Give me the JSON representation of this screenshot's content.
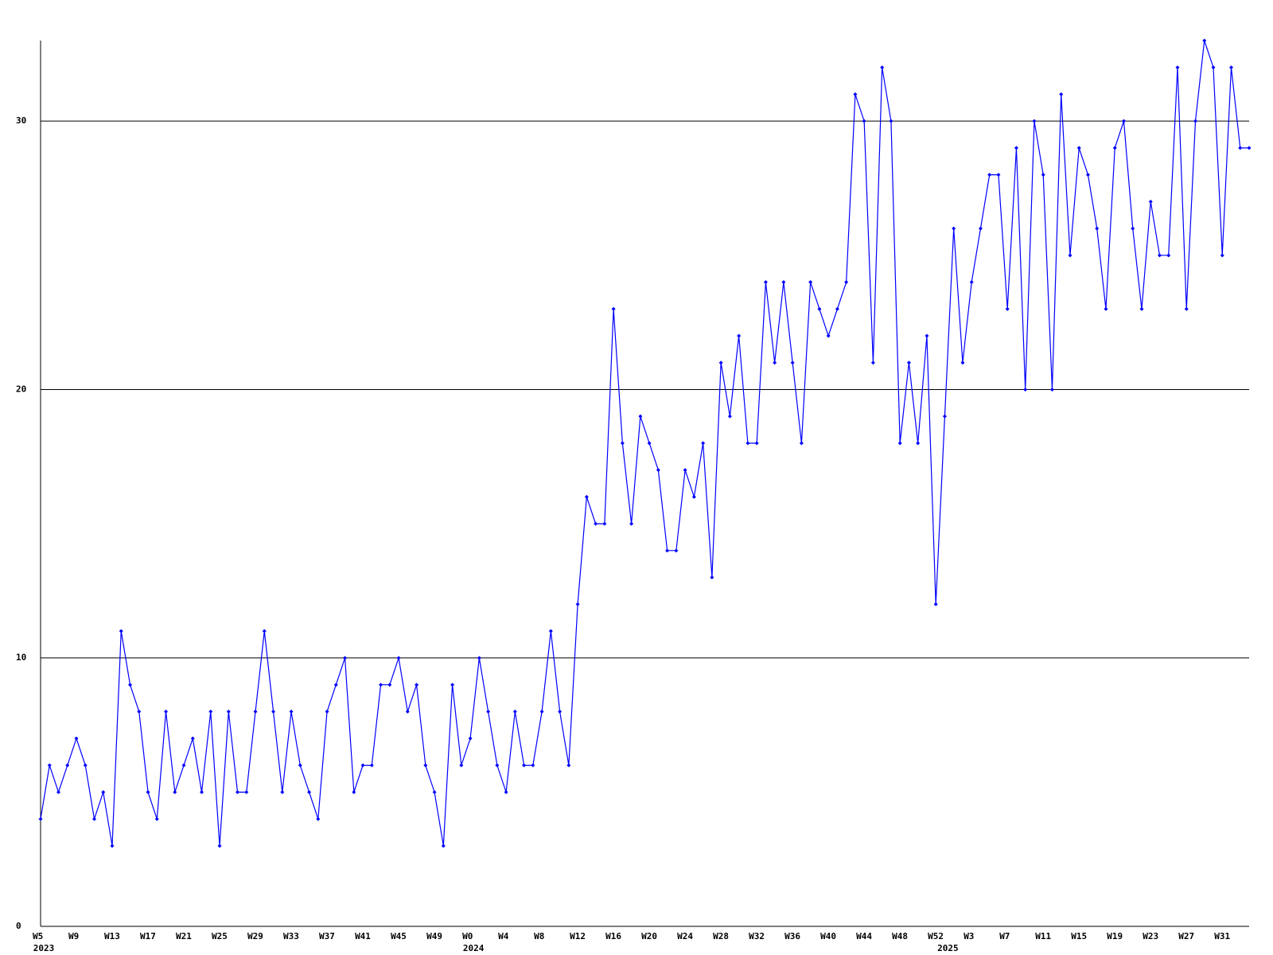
{
  "chart_data": {
    "type": "line",
    "color": "#0000ff",
    "grid": true,
    "ylim": [
      0,
      33
    ],
    "yticks": [
      0,
      10,
      20,
      30
    ],
    "categories": [
      "W5",
      null,
      null,
      null,
      "W9",
      null,
      null,
      null,
      "W13",
      null,
      null,
      null,
      "W17",
      null,
      null,
      null,
      "W21",
      null,
      null,
      null,
      "W25",
      null,
      null,
      null,
      "W29",
      null,
      null,
      null,
      "W33",
      null,
      null,
      null,
      "W37",
      null,
      null,
      null,
      "W41",
      null,
      null,
      null,
      "W45",
      null,
      null,
      null,
      "W49",
      null,
      null,
      null,
      "W0",
      null,
      null,
      null,
      "W4",
      null,
      null,
      null,
      "W8",
      null,
      null,
      null,
      "W12",
      null,
      null,
      null,
      "W16",
      null,
      null,
      null,
      "W20",
      null,
      null,
      null,
      "W24",
      null,
      null,
      null,
      "W28",
      null,
      null,
      null,
      "W32",
      null,
      null,
      null,
      "W36",
      null,
      null,
      null,
      "W40",
      null,
      null,
      null,
      "W44",
      null,
      null,
      null,
      "W48",
      null,
      null,
      null,
      "W52",
      null,
      null,
      null,
      "W3",
      null,
      null,
      null,
      "W7",
      null,
      null,
      null,
      "W11",
      null,
      null,
      null,
      "W15",
      null,
      null,
      null,
      "W19",
      null,
      null,
      null,
      "W23",
      null,
      null,
      null,
      "W27",
      null,
      null,
      null,
      "W31",
      null,
      null,
      null
    ],
    "category_years": [
      "2023",
      null,
      null,
      null,
      null,
      null,
      null,
      null,
      null,
      null,
      null,
      null,
      null,
      null,
      null,
      null,
      null,
      null,
      null,
      null,
      null,
      null,
      null,
      null,
      null,
      null,
      null,
      null,
      null,
      null,
      null,
      null,
      null,
      null,
      null,
      null,
      null,
      null,
      null,
      null,
      null,
      null,
      null,
      null,
      null,
      null,
      null,
      null,
      "2024",
      null,
      null,
      null,
      null,
      null,
      null,
      null,
      null,
      null,
      null,
      null,
      null,
      null,
      null,
      null,
      null,
      null,
      null,
      null,
      null,
      null,
      null,
      null,
      null,
      null,
      null,
      null,
      null,
      null,
      null,
      null,
      null,
      null,
      null,
      null,
      null,
      null,
      null,
      null,
      null,
      null,
      null,
      null,
      null,
      null,
      null,
      null,
      null,
      null,
      null,
      null,
      null,
      "2025",
      null,
      null,
      null,
      null,
      null,
      null,
      null,
      null,
      null,
      null,
      null,
      null,
      null,
      null,
      null,
      null,
      null,
      null,
      null,
      null,
      null,
      null,
      null,
      null,
      null,
      null,
      null,
      null,
      null,
      null,
      null,
      null,
      null,
      null
    ],
    "values": [
      4,
      6,
      5,
      6,
      7,
      6,
      4,
      5,
      3,
      11,
      9,
      8,
      5,
      4,
      8,
      5,
      6,
      7,
      5,
      8,
      3,
      8,
      5,
      5,
      8,
      11,
      8,
      5,
      8,
      6,
      5,
      4,
      8,
      9,
      10,
      5,
      6,
      6,
      9,
      9,
      10,
      8,
      9,
      6,
      5,
      3,
      9,
      6,
      7,
      10,
      8,
      6,
      5,
      8,
      6,
      6,
      8,
      11,
      8,
      6,
      12,
      16,
      15,
      15,
      23,
      18,
      15,
      19,
      18,
      17,
      14,
      14,
      17,
      16,
      18,
      13,
      21,
      19,
      22,
      18,
      18,
      24,
      21,
      24,
      21,
      18,
      24,
      23,
      22,
      23,
      24,
      31,
      30,
      21,
      32,
      30,
      18,
      21,
      18,
      22,
      12,
      19,
      26,
      21,
      24,
      26,
      28,
      28,
      23,
      29,
      20,
      30,
      28,
      20,
      31,
      25,
      29,
      28,
      26,
      23,
      29,
      30,
      26,
      23,
      27,
      25,
      25,
      32,
      23,
      30,
      33,
      32,
      25,
      32,
      29,
      29
    ]
  }
}
